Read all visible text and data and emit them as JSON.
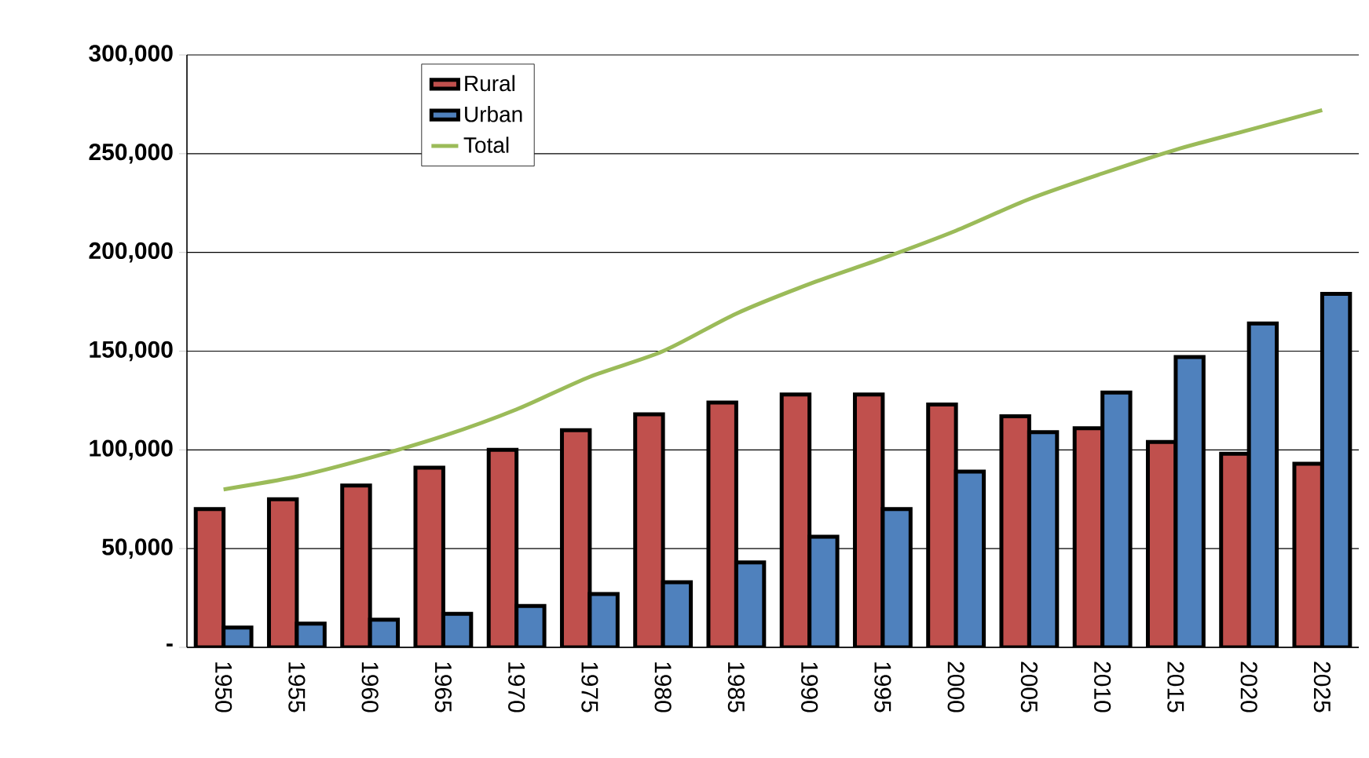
{
  "chart_data": {
    "type": "bar",
    "categories": [
      "1950",
      "1955",
      "1960",
      "1965",
      "1970",
      "1975",
      "1980",
      "1985",
      "1990",
      "1995",
      "2000",
      "2005",
      "2010",
      "2015",
      "2020",
      "2025"
    ],
    "series": [
      {
        "name": "Rural",
        "color": "#c0504d",
        "values": [
          70000,
          75000,
          82000,
          91000,
          100000,
          110000,
          118000,
          124000,
          128000,
          128000,
          123000,
          117000,
          111000,
          104000,
          98000,
          93000
        ]
      },
      {
        "name": "Urban",
        "color": "#4f81bd",
        "values": [
          10000,
          12000,
          14000,
          17000,
          21000,
          27000,
          33000,
          43000,
          56000,
          70000,
          89000,
          109000,
          129000,
          147000,
          164000,
          179000
        ]
      },
      {
        "name": "Total",
        "type": "line",
        "color": "#9bbb59",
        "values": [
          80000,
          86500,
          96000,
          107000,
          120500,
          137000,
          150000,
          169000,
          184000,
          197000,
          211000,
          227000,
          240000,
          252000,
          262000,
          272000
        ]
      }
    ],
    "ylim": [
      0,
      300000
    ],
    "yticks": [
      {
        "value": 0,
        "label": "-"
      },
      {
        "value": 50000,
        "label": "50,000"
      },
      {
        "value": 100000,
        "label": "100,000"
      },
      {
        "value": 150000,
        "label": "150,000"
      },
      {
        "value": 200000,
        "label": "200,000"
      },
      {
        "value": 250000,
        "label": "250,000"
      },
      {
        "value": 300000,
        "label": "300,000"
      }
    ],
    "grid": "y",
    "legend": "top left",
    "marker": "none"
  }
}
